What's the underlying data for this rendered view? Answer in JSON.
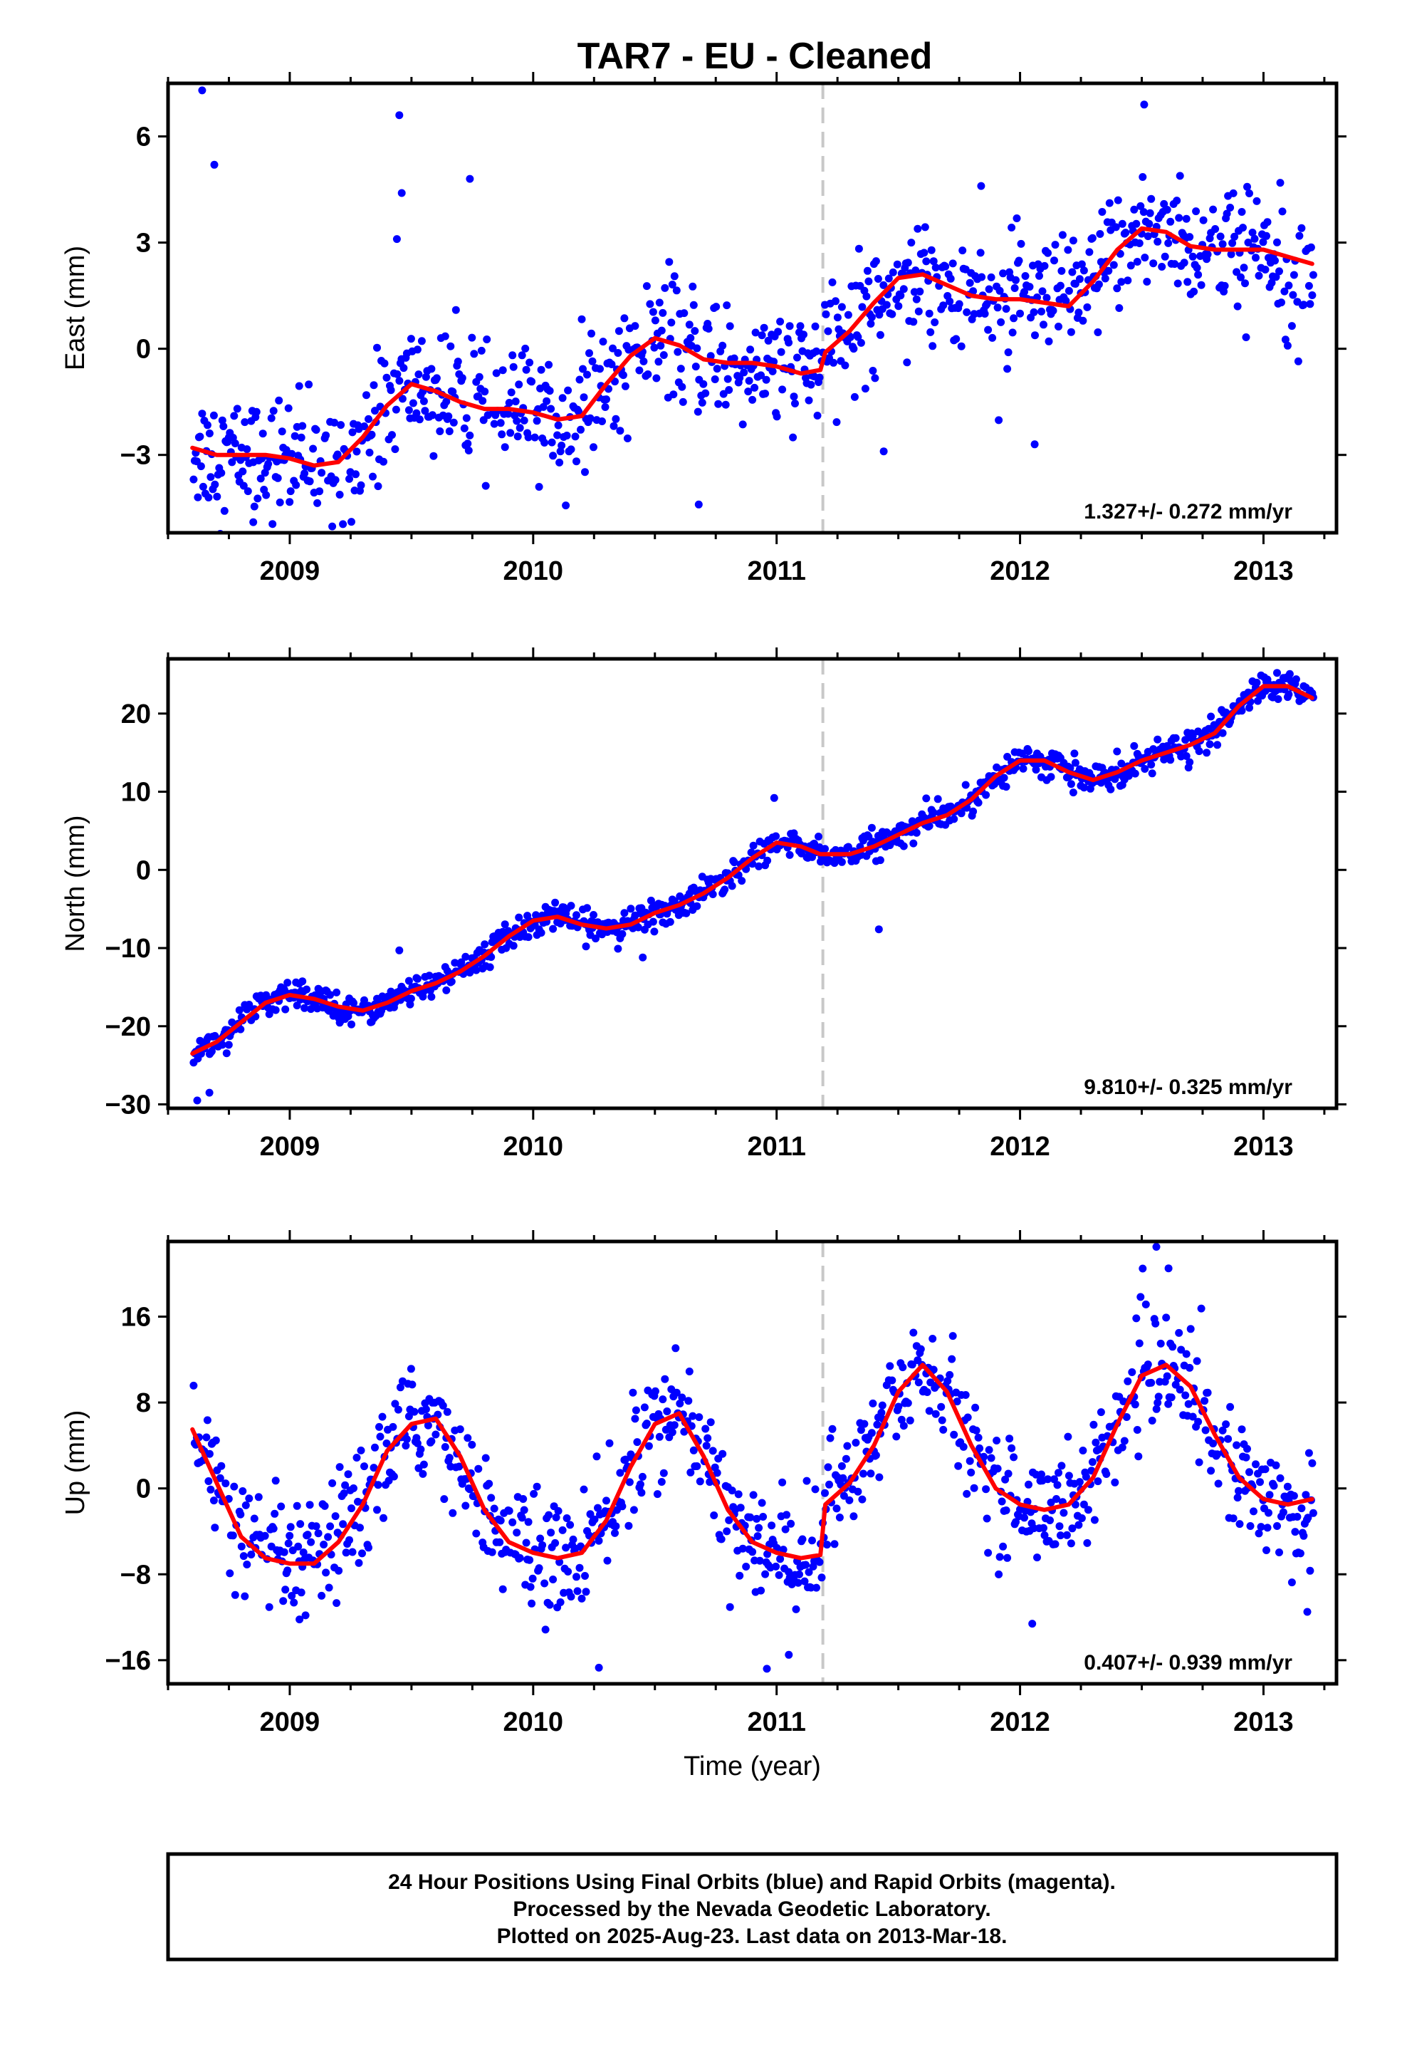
{
  "title": "TAR7  - EU - Cleaned",
  "colors": {
    "points": "#0000ff",
    "fit": "#ff0000",
    "event_line": "#c8c8c8",
    "frame": "#000000"
  },
  "chart_data": [
    {
      "type": "scatter",
      "ylabel": "East (mm)",
      "xlabel": "",
      "xlim": [
        2008.5,
        2013.3
      ],
      "ylim": [
        -5.2,
        7.5
      ],
      "yticks": [
        6,
        3,
        0,
        -3
      ],
      "ytick_labels": [
        "6",
        "3",
        "0",
        "−3"
      ],
      "xticks": [
        2009,
        2010,
        2011,
        2012,
        2013
      ],
      "xtick_labels": [
        "2009",
        "2010",
        "2011",
        "2012",
        "2013"
      ],
      "event_x": 2011.19,
      "rate": "1.327+/- 0.272 mm/yr",
      "rate_value": 1.327,
      "rate_sigma": 0.272,
      "series": [
        {
          "role": "fit",
          "x": [
            2008.6,
            2008.7,
            2008.8,
            2008.9,
            2009.0,
            2009.1,
            2009.2,
            2009.3,
            2009.4,
            2009.5,
            2009.6,
            2009.7,
            2009.8,
            2009.9,
            2010.0,
            2010.1,
            2010.2,
            2010.3,
            2010.4,
            2010.5,
            2010.6,
            2010.7,
            2010.8,
            2010.9,
            2011.0,
            2011.1,
            2011.18,
            2011.2,
            2011.3,
            2011.4,
            2011.5,
            2011.6,
            2011.7,
            2011.8,
            2011.9,
            2012.0,
            2012.1,
            2012.2,
            2012.3,
            2012.4,
            2012.5,
            2012.6,
            2012.7,
            2012.8,
            2012.9,
            2013.0,
            2013.1,
            2013.2
          ],
          "y": [
            -2.8,
            -3.0,
            -3.0,
            -3.0,
            -3.1,
            -3.3,
            -3.2,
            -2.5,
            -1.6,
            -1.0,
            -1.2,
            -1.5,
            -1.7,
            -1.7,
            -1.8,
            -2.0,
            -1.9,
            -1.0,
            -0.2,
            0.3,
            0.1,
            -0.3,
            -0.4,
            -0.4,
            -0.5,
            -0.7,
            -0.6,
            -0.1,
            0.5,
            1.3,
            2.0,
            2.1,
            1.8,
            1.5,
            1.4,
            1.4,
            1.3,
            1.2,
            1.9,
            2.8,
            3.4,
            3.3,
            2.9,
            2.8,
            2.8,
            2.8,
            2.6,
            2.4
          ]
        },
        {
          "role": "daily positions",
          "seasonal_amplitude": 0.9,
          "scatter_sigma": 0.85,
          "outliers": [
            {
              "x": 2008.64,
              "y": 7.3
            },
            {
              "x": 2008.69,
              "y": 5.2
            },
            {
              "x": 2009.45,
              "y": 6.6
            },
            {
              "x": 2009.46,
              "y": 4.4
            },
            {
              "x": 2009.44,
              "y": 3.1
            },
            {
              "x": 2009.74,
              "y": 4.8
            },
            {
              "x": 2011.84,
              "y": 4.6
            },
            {
              "x": 2012.51,
              "y": 6.9
            },
            {
              "x": 2011.44,
              "y": -2.9
            },
            {
              "x": 2012.06,
              "y": -2.7
            },
            {
              "x": 2010.68,
              "y": -4.4
            },
            {
              "x": 2008.85,
              "y": -4.9
            }
          ]
        }
      ]
    },
    {
      "type": "scatter",
      "ylabel": "North (mm)",
      "xlabel": "",
      "xlim": [
        2008.5,
        2013.3
      ],
      "ylim": [
        -30.5,
        27
      ],
      "yticks": [
        20,
        10,
        0,
        -10,
        -20,
        -30
      ],
      "ytick_labels": [
        "20",
        "10",
        "0",
        "−10",
        "−20",
        "−30"
      ],
      "xticks": [
        2009,
        2010,
        2011,
        2012,
        2013
      ],
      "xtick_labels": [
        "2009",
        "2010",
        "2011",
        "2012",
        "2013"
      ],
      "event_x": 2011.19,
      "rate": "9.810+/- 0.325 mm/yr",
      "rate_value": 9.81,
      "rate_sigma": 0.325,
      "series": [
        {
          "role": "fit",
          "x": [
            2008.6,
            2008.7,
            2008.8,
            2008.9,
            2009.0,
            2009.1,
            2009.2,
            2009.3,
            2009.4,
            2009.5,
            2009.6,
            2009.7,
            2009.8,
            2009.9,
            2010.0,
            2010.1,
            2010.2,
            2010.3,
            2010.4,
            2010.5,
            2010.6,
            2010.7,
            2010.8,
            2010.9,
            2011.0,
            2011.1,
            2011.18,
            2011.2,
            2011.3,
            2011.4,
            2011.5,
            2011.6,
            2011.7,
            2011.8,
            2011.9,
            2012.0,
            2012.1,
            2012.2,
            2012.3,
            2012.4,
            2012.5,
            2012.6,
            2012.7,
            2012.8,
            2012.9,
            2013.0,
            2013.1,
            2013.2
          ],
          "y": [
            -23.5,
            -22.0,
            -19.5,
            -17.0,
            -16.0,
            -16.5,
            -17.5,
            -18.0,
            -17.0,
            -15.5,
            -14.5,
            -13.0,
            -11.0,
            -8.5,
            -6.5,
            -6.0,
            -7.0,
            -7.5,
            -7.0,
            -5.5,
            -4.5,
            -3.0,
            -1.0,
            1.5,
            3.5,
            3.0,
            2.0,
            2.0,
            2.0,
            3.0,
            4.5,
            6.0,
            7.0,
            9.0,
            12.0,
            14.0,
            14.0,
            12.5,
            11.5,
            12.5,
            14.0,
            15.0,
            16.0,
            17.5,
            21.0,
            23.5,
            23.5,
            22.0
          ]
        },
        {
          "role": "daily positions",
          "seasonal_amplitude": 0,
          "scatter_sigma": 0.9,
          "outliers": [
            {
              "x": 2008.67,
              "y": -28.5
            },
            {
              "x": 2008.62,
              "y": -29.5
            },
            {
              "x": 2011.42,
              "y": -7.6
            },
            {
              "x": 2010.45,
              "y": -11.2
            },
            {
              "x": 2009.45,
              "y": -10.3
            },
            {
              "x": 2010.99,
              "y": 9.2
            }
          ]
        }
      ]
    },
    {
      "type": "scatter",
      "ylabel": "Up (mm)",
      "xlabel": "Time (year)",
      "xlim": [
        2008.5,
        2013.3
      ],
      "ylim": [
        -18.2,
        23
      ],
      "yticks": [
        16,
        8,
        0,
        -8,
        -16
      ],
      "ytick_labels": [
        "16",
        "8",
        "0",
        "−8",
        "−16"
      ],
      "xticks": [
        2009,
        2010,
        2011,
        2012,
        2013
      ],
      "xtick_labels": [
        "2009",
        "2010",
        "2011",
        "2012",
        "2013"
      ],
      "event_x": 2011.19,
      "rate": "0.407+/- 0.939 mm/yr",
      "rate_value": 0.407,
      "rate_sigma": 0.939,
      "series": [
        {
          "role": "fit",
          "x": [
            2008.6,
            2008.7,
            2008.8,
            2008.9,
            2009.0,
            2009.1,
            2009.2,
            2009.3,
            2009.4,
            2009.5,
            2009.6,
            2009.7,
            2009.8,
            2009.9,
            2010.0,
            2010.1,
            2010.2,
            2010.3,
            2010.4,
            2010.5,
            2010.6,
            2010.7,
            2010.8,
            2010.9,
            2011.0,
            2011.1,
            2011.18,
            2011.2,
            2011.3,
            2011.4,
            2011.5,
            2011.6,
            2011.7,
            2011.8,
            2011.9,
            2012.0,
            2012.1,
            2012.2,
            2012.3,
            2012.4,
            2012.5,
            2012.6,
            2012.7,
            2012.8,
            2012.9,
            2013.0,
            2013.1,
            2013.2
          ],
          "y": [
            5.5,
            0.5,
            -4.5,
            -6.5,
            -7.0,
            -7.0,
            -5.0,
            -1.5,
            3.5,
            6.0,
            6.5,
            3.0,
            -2.0,
            -5.0,
            -6.0,
            -6.5,
            -6.0,
            -3.0,
            2.0,
            6.0,
            7.0,
            3.0,
            -2.0,
            -5.0,
            -6.0,
            -6.5,
            -6.2,
            -1.5,
            0.5,
            4.0,
            9.0,
            11.5,
            9.0,
            4.0,
            0.0,
            -1.5,
            -2.0,
            -1.5,
            1.0,
            6.0,
            10.5,
            11.5,
            9.5,
            5.0,
            1.0,
            -1.0,
            -1.5,
            -1.0
          ]
        },
        {
          "role": "daily positions",
          "seasonal_amplitude": 0,
          "scatter_sigma": 2.6,
          "outliers": [
            {
              "x": 2012.56,
              "y": 22.5
            },
            {
              "x": 2012.61,
              "y": 20.5
            },
            {
              "x": 2010.27,
              "y": -16.7
            },
            {
              "x": 2010.96,
              "y": -16.8
            },
            {
              "x": 2011.05,
              "y": -15.5
            },
            {
              "x": 2009.04,
              "y": -12.2
            },
            {
              "x": 2012.05,
              "y": -12.6
            },
            {
              "x": 2013.18,
              "y": -11.5
            }
          ]
        }
      ]
    }
  ],
  "footer": {
    "line1": "24 Hour Positions Using Final Orbits (blue) and Rapid Orbits (magenta).",
    "line2": "Processed by the Nevada Geodetic Laboratory.",
    "line3": "Plotted on 2025-Aug-23. Last data on 2013-Mar-18."
  }
}
